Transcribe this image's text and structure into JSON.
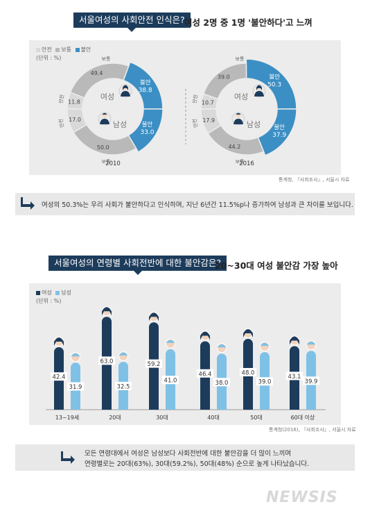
{
  "top": {
    "banner": "서울여성의 사회안전 인식은?",
    "subhead": "여성 2명 중 1명 '불안하다'고 느껴",
    "legend": [
      "안전",
      "보통",
      "불안"
    ],
    "unit": "(단위 : %)",
    "source": "통계청, 『사회조사』, 서울시 자료",
    "note": "여성의 50.3%는 우리 사회가 불안하다고 인식하며, 지난 6년간 11.5%p나 증가하여 남성과 큰 차이를 보입니다."
  },
  "bottom": {
    "banner": "서울여성의 연령별 사회전반에 대한 불안감은?",
    "subhead": "20~30대 여성 불안감 가장 높아",
    "legend": [
      "여성",
      "남성"
    ],
    "unit": "(단위 : %)",
    "source": "통계청(2016), 『사회조사』, 서울시 자료",
    "note_line1": "모든 연령대에서 여성은 남성보다 사회전반에 대한 불안감을 더 많이 느끼며",
    "note_line2": "연령별로는 20대(63%), 30대(59.2%), 50대(48%) 순으로 높게 나타났습니다."
  },
  "watermark": "NEWSIS",
  "colors": {
    "navy": "#1d3c5c",
    "blue": "#3b8fc4",
    "lightblue": "#7fc1e6",
    "gray": "#b9b9b9",
    "lightgray": "#d9d9d9"
  },
  "chart_data": [
    {
      "type": "pie",
      "title": "2010",
      "categories": [
        "안전",
        "보통",
        "불안"
      ],
      "series": [
        {
          "name": "여성",
          "values": [
            11.8,
            49.4,
            38.8
          ]
        },
        {
          "name": "남성",
          "values": [
            17.0,
            50.0,
            33.0
          ]
        }
      ],
      "inner_labels": [
        "여성",
        "남성"
      ],
      "segment_words": {
        "safe": "안전",
        "normal": "보통",
        "unsafe": "불안"
      }
    },
    {
      "type": "pie",
      "title": "2016",
      "categories": [
        "안전",
        "보통",
        "불안"
      ],
      "series": [
        {
          "name": "여성",
          "values": [
            10.7,
            39.0,
            50.3
          ]
        },
        {
          "name": "남성",
          "values": [
            17.9,
            44.2,
            37.9
          ]
        }
      ],
      "inner_labels": [
        "여성",
        "남성"
      ],
      "segment_words": {
        "safe": "안전",
        "normal": "보통",
        "unsafe": "불안"
      }
    },
    {
      "type": "bar",
      "categories": [
        "13~19세",
        "20대",
        "30대",
        "40대",
        "50대",
        "60대 이상"
      ],
      "series": [
        {
          "name": "여성",
          "values": [
            42.4,
            63.0,
            59.2,
            46.4,
            48.0,
            43.1
          ]
        },
        {
          "name": "남성",
          "values": [
            31.9,
            32.5,
            41.0,
            38.0,
            39.0,
            39.9
          ]
        }
      ],
      "ylim": [
        0,
        70
      ]
    }
  ]
}
